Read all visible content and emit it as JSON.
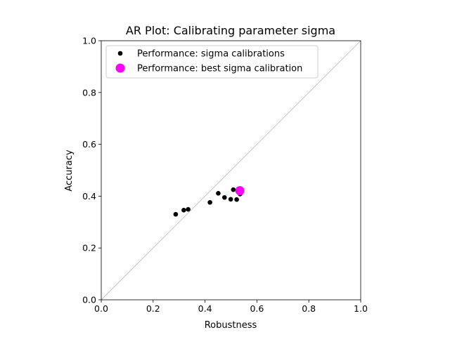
{
  "chart_data": {
    "type": "scatter",
    "title": "AR Plot: Calibrating parameter sigma",
    "xlabel": "Robustness",
    "ylabel": "Accuracy",
    "xlim": [
      0.0,
      1.0
    ],
    "ylim": [
      0.0,
      1.0
    ],
    "xticks": [
      "0.0",
      "0.2",
      "0.4",
      "0.6",
      "0.8",
      "1.0"
    ],
    "yticks": [
      "0.0",
      "0.2",
      "0.4",
      "0.6",
      "0.8",
      "1.0"
    ],
    "grid": false,
    "legend_position": "upper-left",
    "diagonal_line": true,
    "series": [
      {
        "name": "Performance: sigma calibrations",
        "color": "#000000",
        "marker": "small-circle",
        "points": [
          {
            "x": 0.287,
            "y": 0.33
          },
          {
            "x": 0.318,
            "y": 0.346
          },
          {
            "x": 0.335,
            "y": 0.349
          },
          {
            "x": 0.419,
            "y": 0.376
          },
          {
            "x": 0.451,
            "y": 0.411
          },
          {
            "x": 0.475,
            "y": 0.395
          },
          {
            "x": 0.499,
            "y": 0.388
          },
          {
            "x": 0.509,
            "y": 0.425
          },
          {
            "x": 0.522,
            "y": 0.387
          },
          {
            "x": 0.529,
            "y": 0.428
          },
          {
            "x": 0.535,
            "y": 0.408
          }
        ]
      },
      {
        "name": "Performance: best sigma calibration",
        "color": "#ff00ff",
        "marker": "large-circle",
        "points": [
          {
            "x": 0.534,
            "y": 0.421
          }
        ]
      }
    ]
  }
}
